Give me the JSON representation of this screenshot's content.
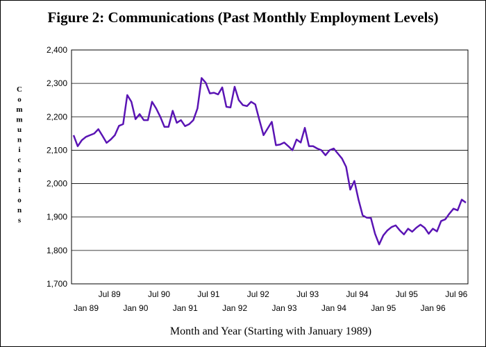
{
  "chart_data": {
    "type": "line",
    "title": "Figure 2:  Communications (Past Monthly Employment Levels)",
    "x_label": "Month and Year (Starting with January 1989)",
    "y_label": "Communications",
    "categories": [
      "Jan 89",
      null,
      null,
      null,
      null,
      null,
      "Jul 89",
      null,
      null,
      null,
      null,
      null,
      "Jan 90",
      null,
      null,
      null,
      null,
      null,
      "Jul 90",
      null,
      null,
      null,
      null,
      null,
      "Jan 91",
      null,
      null,
      null,
      null,
      null,
      "Jul 91",
      null,
      null,
      null,
      null,
      null,
      "Jan 92",
      null,
      null,
      null,
      null,
      null,
      "Jul 92",
      null,
      null,
      null,
      null,
      null,
      "Jan 93",
      null,
      null,
      null,
      null,
      null,
      "Jul 93",
      null,
      null,
      null,
      null,
      null,
      "Jan 94",
      null,
      null,
      null,
      null,
      null,
      "Jul 94",
      null,
      null,
      null,
      null,
      null,
      "Jan 95",
      null,
      null,
      null,
      null,
      null,
      "Jul 95",
      null,
      null,
      null,
      null,
      null,
      "Jan 96",
      null,
      null,
      null,
      null,
      null,
      "Jul 96",
      null,
      null,
      null,
      null,
      null
    ],
    "series": [
      {
        "name": "Communications",
        "color": "#5a14b4",
        "values": [
          2145,
          2112,
          2130,
          2140,
          2145,
          2150,
          2163,
          2143,
          2122,
          2132,
          2145,
          2173,
          2178,
          2265,
          2245,
          2193,
          2208,
          2190,
          2190,
          2245,
          2225,
          2200,
          2170,
          2170,
          2218,
          2182,
          2190,
          2172,
          2178,
          2190,
          2225,
          2316,
          2302,
          2270,
          2272,
          2267,
          2288,
          2230,
          2228,
          2290,
          2250,
          2235,
          2232,
          2245,
          2237,
          2190,
          2145,
          2165,
          2185,
          2115,
          2117,
          2123,
          2112,
          2100,
          2132,
          2123,
          2167,
          2112,
          2112,
          2105,
          2100,
          2085,
          2100,
          2105,
          2090,
          2075,
          2050,
          1982,
          2008,
          1952,
          1905,
          1898,
          1897,
          1850,
          1818,
          1845,
          1860,
          1870,
          1875,
          1860,
          1848,
          1865,
          1856,
          1868,
          1877,
          1868,
          1850,
          1865,
          1857,
          1888,
          1893,
          1910,
          1925,
          1920,
          1952,
          1943
        ]
      }
    ],
    "ylim": [
      1700,
      2400
    ],
    "yticks": [
      {
        "value": 1700,
        "label": "1,700"
      },
      {
        "value": 1800,
        "label": "1,800"
      },
      {
        "value": 1900,
        "label": "1,900"
      },
      {
        "value": 2000,
        "label": "2,000"
      },
      {
        "value": 2100,
        "label": "2,100"
      },
      {
        "value": 2200,
        "label": "2,200"
      },
      {
        "value": 2300,
        "label": "2,300"
      },
      {
        "value": 2400,
        "label": "2,400"
      }
    ],
    "grid": true
  }
}
